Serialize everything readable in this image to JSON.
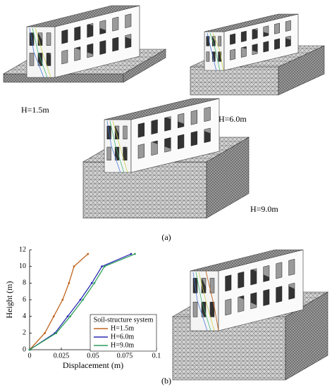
{
  "panel_a": {
    "labels": [
      "H=1.5m",
      "H=6.0m",
      "H=9.0m"
    ],
    "caption": "(a)"
  },
  "panel_b": {
    "caption": "(b)"
  },
  "chart_data": {
    "type": "line",
    "xlabel": "Displacement (m)",
    "ylabel": "Height (m)",
    "legend_title": "Soil-structure system",
    "legend": "lower right",
    "xlim": [
      0,
      0.1
    ],
    "xticks": [
      0,
      0.025,
      0.05,
      0.075,
      0.1
    ],
    "ylim": [
      0,
      12
    ],
    "yticks": [
      0,
      2,
      4,
      6,
      8,
      10,
      12
    ],
    "series": [
      {
        "name": "H=1.5m",
        "color": "#c0641e",
        "x": [
          0,
          0.012,
          0.019,
          0.026,
          0.031,
          0.035,
          0.046
        ],
        "values": [
          0,
          2,
          4,
          6,
          8,
          10,
          11.5
        ]
      },
      {
        "name": "H=6.0m",
        "color": "#2a2ab4",
        "x": [
          0,
          0.02,
          0.03,
          0.04,
          0.049,
          0.057,
          0.08
        ],
        "values": [
          0,
          2,
          4,
          6,
          8,
          10,
          11.5
        ]
      },
      {
        "name": "H=9.0m",
        "color": "#2e9e5a",
        "x": [
          0,
          0.021,
          0.032,
          0.042,
          0.051,
          0.059,
          0.083
        ],
        "values": [
          0,
          2,
          4,
          6,
          8,
          10,
          11.5
        ]
      }
    ]
  }
}
